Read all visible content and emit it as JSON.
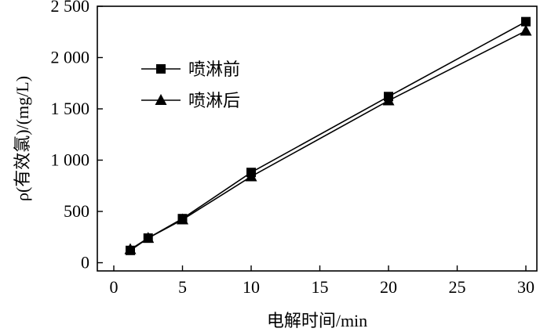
{
  "chart_data": {
    "type": "line",
    "xlabel": "电解时间/min",
    "ylabel": "ρ(有效氯)/(mg/L)",
    "xlim": [
      -1.2,
      30.8
    ],
    "ylim": [
      -80,
      2500
    ],
    "x_ticks": [
      0,
      5,
      10,
      15,
      20,
      25,
      30
    ],
    "y_ticks": [
      0,
      500,
      1000,
      1500,
      2000,
      2500
    ],
    "x_tick_labels": [
      "0",
      "5",
      "10",
      "15",
      "20",
      "25",
      "30"
    ],
    "y_tick_labels": [
      "0",
      "500",
      "1 000",
      "1 500",
      "2 000",
      "2 500"
    ],
    "grid": false,
    "legend_position": "upper-left",
    "series": [
      {
        "name": "喷淋前",
        "marker": "square",
        "x": [
          1.2,
          2.5,
          5,
          10,
          20,
          30
        ],
        "y": [
          120,
          240,
          430,
          880,
          1620,
          2350
        ]
      },
      {
        "name": "喷淋后",
        "marker": "triangle",
        "x": [
          1.2,
          2.5,
          5,
          10,
          20,
          30
        ],
        "y": [
          130,
          240,
          420,
          840,
          1580,
          2260
        ]
      }
    ]
  }
}
